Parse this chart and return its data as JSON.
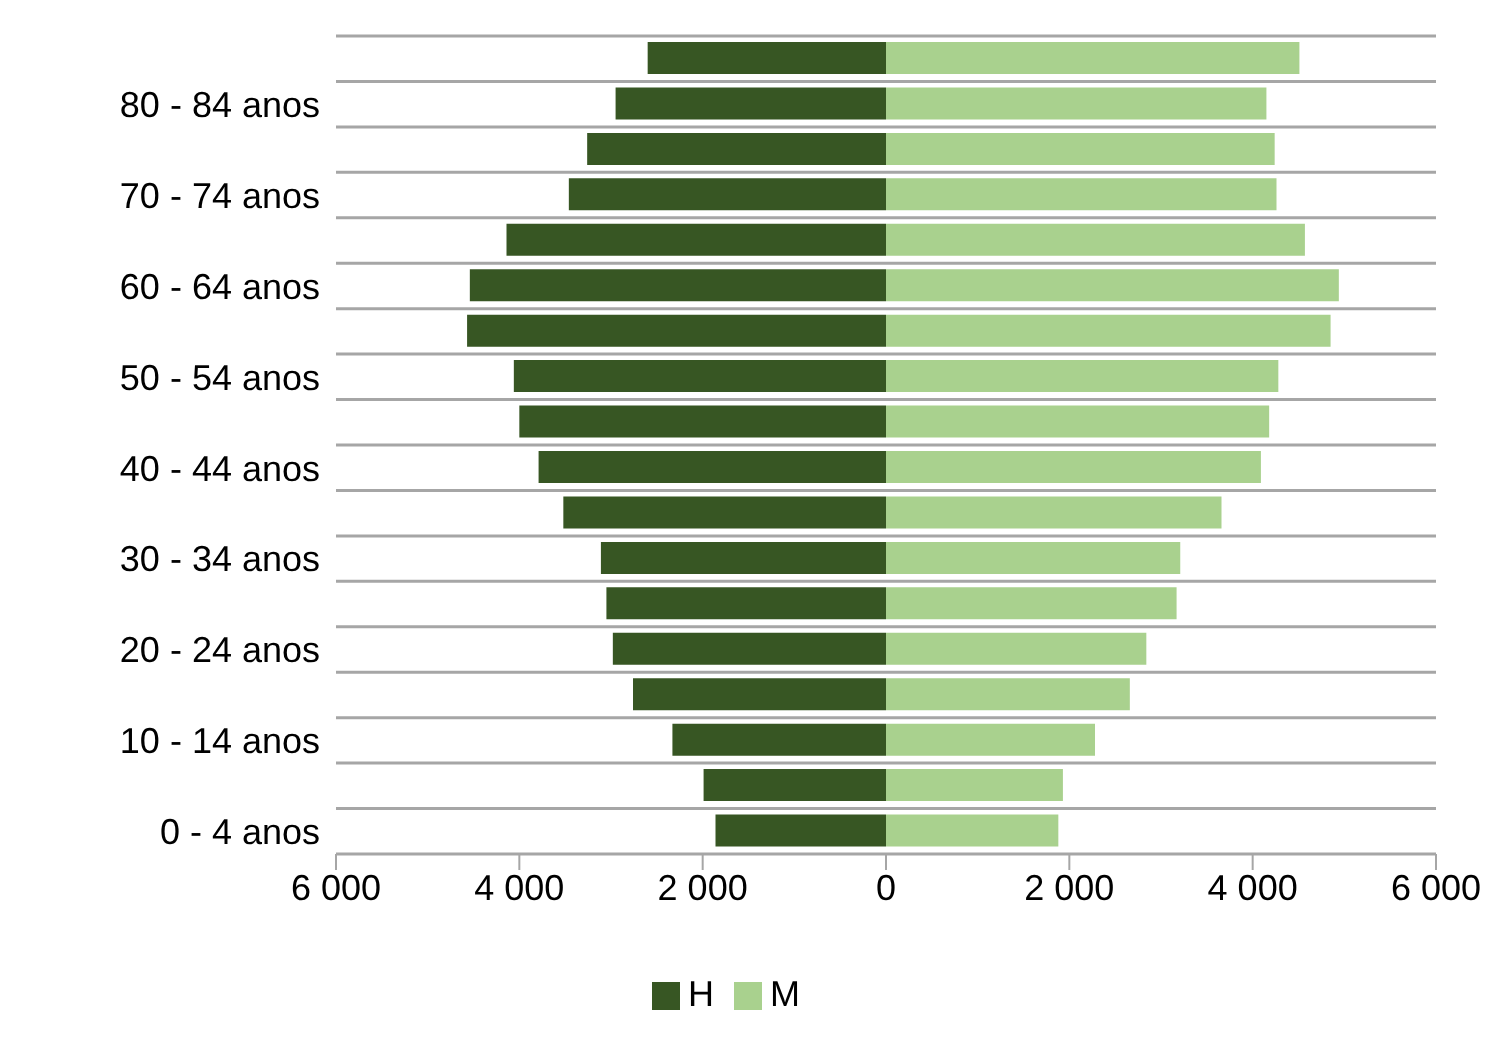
{
  "chart_data": {
    "type": "bar",
    "orientation": "horizontal",
    "stacked": true,
    "categories": [
      null,
      "80 - 84 anos",
      null,
      "70 - 74 anos",
      null,
      "60 - 64 anos",
      null,
      "50 - 54 anos",
      null,
      "40 - 44 anos",
      null,
      "30 - 34 anos",
      null,
      "20 - 24 anos",
      null,
      "10 - 14 anos",
      null,
      "0 - 4 anos"
    ],
    "series": [
      {
        "name": "H",
        "color": "#375623",
        "values": [
          -2600,
          -2950,
          -3260,
          -3460,
          -4140,
          -4540,
          -4570,
          -4060,
          -4000,
          -3790,
          -3520,
          -3110,
          -3050,
          -2980,
          -2760,
          -2330,
          -1990,
          -1860
        ]
      },
      {
        "name": "M",
        "color": "#a9d18e",
        "values": [
          4510,
          4150,
          4240,
          4260,
          4570,
          4940,
          4850,
          4280,
          4180,
          4090,
          3660,
          3210,
          3170,
          2840,
          2660,
          2280,
          1930,
          1880
        ]
      }
    ],
    "xlim": [
      -6000,
      6000
    ],
    "xticks": [
      {
        "value": -6000,
        "label": "6 000"
      },
      {
        "value": -4000,
        "label": "4 000"
      },
      {
        "value": -2000,
        "label": "2 000"
      },
      0,
      {
        "value": 2000,
        "label": "2 000"
      },
      {
        "value": 4000,
        "label": "4 000"
      },
      {
        "value": 6000,
        "label": "6 000"
      }
    ],
    "grid": "y",
    "legend": "bottom"
  }
}
